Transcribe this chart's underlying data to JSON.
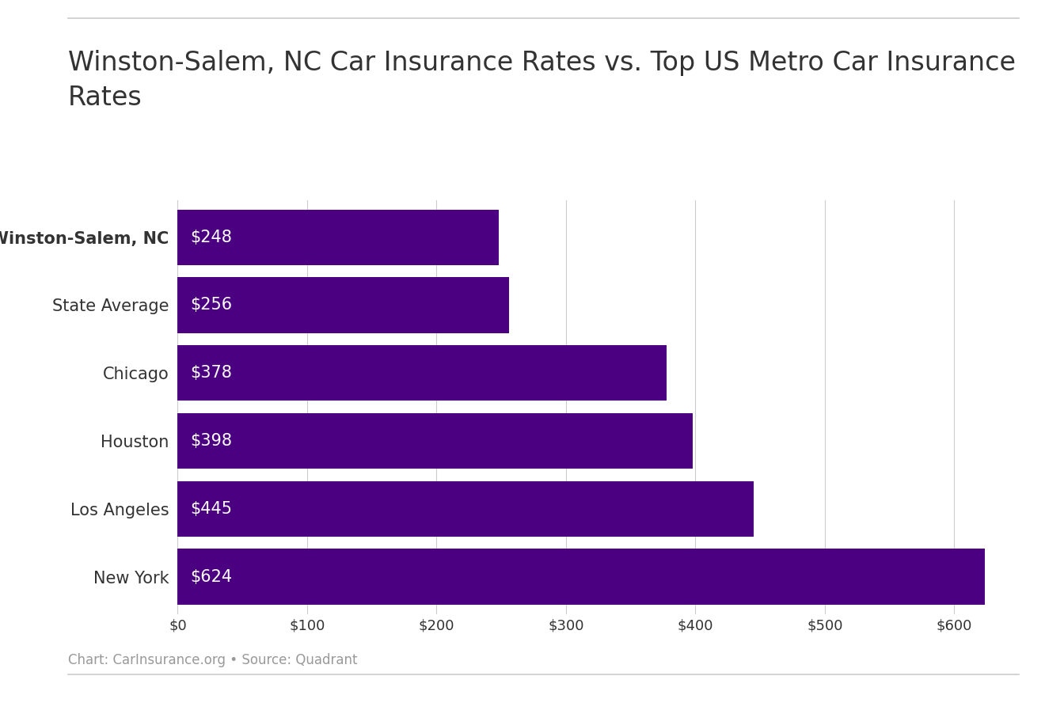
{
  "title": "Winston-Salem, NC Car Insurance Rates vs. Top US Metro Car Insurance\nRates",
  "categories": [
    "Winston-Salem, NC",
    "State Average",
    "Chicago",
    "Houston",
    "Los Angeles",
    "New York"
  ],
  "values": [
    248,
    256,
    378,
    398,
    445,
    624
  ],
  "bar_color": "#4B0082",
  "label_color": "#ffffff",
  "text_color_labels": "#333333",
  "bold_category": "Winston-Salem, NC",
  "xlim": [
    0,
    650
  ],
  "xtick_values": [
    0,
    100,
    200,
    300,
    400,
    500,
    600
  ],
  "footnote": "Chart: CarInsurance.org • Source: Quadrant",
  "background_color": "#ffffff",
  "title_fontsize": 24,
  "label_fontsize": 15,
  "ylabel_fontsize": 15,
  "tick_fontsize": 13,
  "footnote_fontsize": 12,
  "bar_height": 0.82
}
